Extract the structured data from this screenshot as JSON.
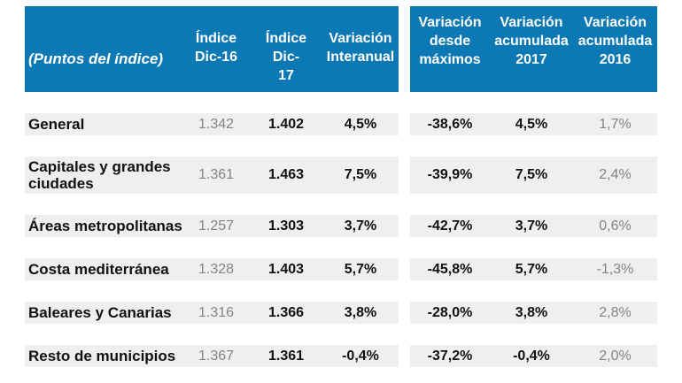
{
  "colors": {
    "header_blue": "#0d79b4",
    "row_band_gray": "#efefef",
    "muted_text": "#848484",
    "strong_text": "#111111"
  },
  "header": {
    "unit_label": "(Puntos del índice)",
    "left_cols": {
      "indice_dic16": "Índice\nDic-16",
      "indice_dic17": "Índice\nDic-\n17",
      "variacion_interanual": "Variación\nInteranual"
    },
    "right_cols": {
      "variacion_desde_maximos": "Variación\ndesde\nmáximos",
      "variacion_acumulada_2017": "Variación\nacumulada\n2017",
      "variacion_acumulada_2016": "Variación\nacumulada\n2016"
    }
  },
  "rows": [
    {
      "label": "General",
      "indice_dic16": "1.342",
      "indice_dic17": "1.402",
      "variacion_interanual": "4,5%",
      "variacion_desde_maximos": "-38,6%",
      "variacion_acumulada_2017": "4,5%",
      "variacion_acumulada_2016": "1,7%"
    },
    {
      "label": "Capitales y grandes\nciudades",
      "indice_dic16": "1.361",
      "indice_dic17": "1.463",
      "variacion_interanual": "7,5%",
      "variacion_desde_maximos": "-39,9%",
      "variacion_acumulada_2017": "7,5%",
      "variacion_acumulada_2016": "2,4%"
    },
    {
      "label": "Áreas metropolitanas",
      "indice_dic16": "1.257",
      "indice_dic17": "1.303",
      "variacion_interanual": "3,7%",
      "variacion_desde_maximos": "-42,7%",
      "variacion_acumulada_2017": "3,7%",
      "variacion_acumulada_2016": "0,6%"
    },
    {
      "label": "Costa mediterránea",
      "indice_dic16": "1.328",
      "indice_dic17": "1.403",
      "variacion_interanual": "5,7%",
      "variacion_desde_maximos": "-45,8%",
      "variacion_acumulada_2017": "5,7%",
      "variacion_acumulada_2016": "-1,3%"
    },
    {
      "label": "Baleares y Canarias",
      "indice_dic16": "1.316",
      "indice_dic17": "1.366",
      "variacion_interanual": "3,8%",
      "variacion_desde_maximos": "-28,0%",
      "variacion_acumulada_2017": "3,8%",
      "variacion_acumulada_2016": "2,8%"
    },
    {
      "label": "Resto de municipios",
      "indice_dic16": "1.367",
      "indice_dic17": "1.361",
      "variacion_interanual": "-0,4%",
      "variacion_desde_maximos": "-37,2%",
      "variacion_acumulada_2017": "-0,4%",
      "variacion_acumulada_2016": "2,0%"
    }
  ],
  "chart_data": {
    "type": "table",
    "title": "(Puntos del índice)",
    "columns": [
      "(Puntos del índice)",
      "Índice Dic-16",
      "Índice Dic-17",
      "Variación Interanual",
      "Variación desde máximos",
      "Variación acumulada 2017",
      "Variación acumulada 2016"
    ],
    "rows": [
      [
        "General",
        "1.342",
        "1.402",
        "4,5%",
        "-38,6%",
        "4,5%",
        "1,7%"
      ],
      [
        "Capitales y grandes ciudades",
        "1.361",
        "1.463",
        "7,5%",
        "-39,9%",
        "7,5%",
        "2,4%"
      ],
      [
        "Áreas metropolitanas",
        "1.257",
        "1.303",
        "3,7%",
        "-42,7%",
        "3,7%",
        "0,6%"
      ],
      [
        "Costa mediterránea",
        "1.328",
        "1.403",
        "5,7%",
        "-45,8%",
        "5,7%",
        "-1,3%"
      ],
      [
        "Baleares y Canarias",
        "1.316",
        "1.366",
        "3,8%",
        "-28,0%",
        "3,8%",
        "2,8%"
      ],
      [
        "Resto de municipios",
        "1.367",
        "1.361",
        "-0,4%",
        "-37,2%",
        "-0,4%",
        "2,0%"
      ]
    ]
  }
}
